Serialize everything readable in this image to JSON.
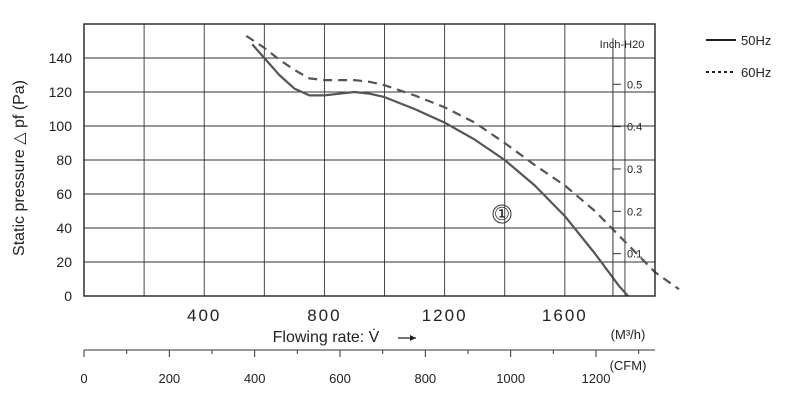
{
  "chart_data": {
    "type": "line",
    "ylabel": "Static pressure △ pf (Pa)",
    "xlabel": "Flowing rate: V̇",
    "x_unit": "(M³/h)",
    "xlim": [
      0,
      1900
    ],
    "ylim": [
      0,
      160
    ],
    "x_ticks": [
      400,
      800,
      1200,
      1600
    ],
    "y_ticks": [
      0,
      20,
      40,
      60,
      80,
      100,
      120,
      140
    ],
    "grid": true,
    "secondary_y": {
      "label": "Inch-H20",
      "ticks": [
        {
          "value": 0.1,
          "label": "0.1"
        },
        {
          "value": 0.2,
          "label": "0.2"
        },
        {
          "value": 0.3,
          "label": "0.3"
        },
        {
          "value": 0.4,
          "label": "0.4"
        },
        {
          "value": 0.5,
          "label": "0.5"
        }
      ]
    },
    "secondary_x": {
      "unit": "(CFM)",
      "ticks": [
        0,
        200,
        400,
        600,
        800,
        1000,
        1200
      ]
    },
    "series": [
      {
        "name": "50Hz",
        "style": "solid",
        "color": "#555555",
        "points": [
          [
            560,
            148
          ],
          [
            600,
            140
          ],
          [
            650,
            130
          ],
          [
            700,
            122
          ],
          [
            750,
            118
          ],
          [
            800,
            118
          ],
          [
            850,
            119
          ],
          [
            900,
            120
          ],
          [
            950,
            119
          ],
          [
            1000,
            117
          ],
          [
            1100,
            110
          ],
          [
            1200,
            102
          ],
          [
            1300,
            92
          ],
          [
            1400,
            80
          ],
          [
            1500,
            65
          ],
          [
            1600,
            47
          ],
          [
            1700,
            25
          ],
          [
            1780,
            6
          ],
          [
            1810,
            0
          ]
        ]
      },
      {
        "name": "60Hz",
        "style": "dashed",
        "color": "#555555",
        "points": [
          [
            540,
            153
          ],
          [
            600,
            146
          ],
          [
            650,
            139
          ],
          [
            700,
            133
          ],
          [
            750,
            128
          ],
          [
            800,
            127
          ],
          [
            850,
            127
          ],
          [
            900,
            127
          ],
          [
            950,
            126
          ],
          [
            1000,
            124
          ],
          [
            1100,
            118
          ],
          [
            1200,
            111
          ],
          [
            1300,
            102
          ],
          [
            1400,
            90
          ],
          [
            1500,
            77
          ],
          [
            1600,
            65
          ],
          [
            1700,
            50
          ],
          [
            1800,
            32
          ],
          [
            1900,
            14
          ],
          [
            1980,
            4
          ]
        ]
      }
    ],
    "annotations": [
      "①"
    ],
    "legend": {
      "position": "top-right",
      "entries": [
        "50Hz",
        "60Hz"
      ]
    }
  }
}
